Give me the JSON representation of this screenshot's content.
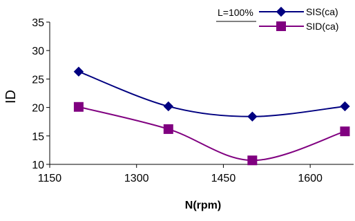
{
  "chart_data": {
    "type": "line",
    "xlabel": "N(rpm)",
    "ylabel": "ID",
    "annotation": "L=100%",
    "xlim": [
      1150,
      1675
    ],
    "ylim": [
      10,
      35
    ],
    "xticks": [
      1150,
      1300,
      1450,
      1600
    ],
    "yticks": [
      10,
      15,
      20,
      25,
      30,
      35
    ],
    "grid": false,
    "legend_position": "top-right",
    "series": [
      {
        "name": "SIS(ca)",
        "color": "#000080",
        "marker": "diamond",
        "x": [
          1200,
          1355,
          1500,
          1660
        ],
        "y": [
          26.3,
          20.2,
          18.4,
          20.2
        ]
      },
      {
        "name": "SID(ca)",
        "color": "#800080",
        "marker": "square",
        "x": [
          1200,
          1355,
          1500,
          1660
        ],
        "y": [
          20.1,
          16.2,
          10.7,
          15.8
        ]
      }
    ]
  }
}
